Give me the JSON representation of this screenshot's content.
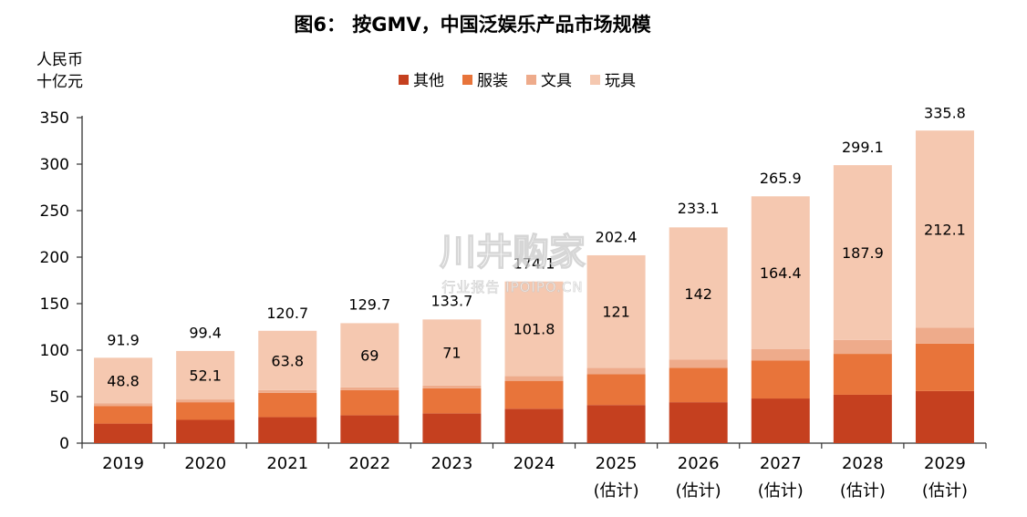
{
  "title": "图6： 按GMV，中国泛娱乐产品市场规模",
  "y_unit_line1": "人民币",
  "y_unit_line2": "十亿元",
  "watermark": {
    "main": "川井购家",
    "sub": "行业报告 IPOIPO.CN"
  },
  "colors": {
    "其他": "#c5401f",
    "服装": "#e8743a",
    "文具": "#eeab8b",
    "玩具": "#f5c8b0"
  },
  "chart_data": {
    "type": "bar",
    "stacked": true,
    "categories": [
      [
        "2019"
      ],
      [
        "2020"
      ],
      [
        "2021"
      ],
      [
        "2022"
      ],
      [
        "2023"
      ],
      [
        "2024"
      ],
      [
        "2025",
        "(估计)"
      ],
      [
        "2026",
        "(估计)"
      ],
      [
        "2027",
        "(估计)"
      ],
      [
        "2028",
        "(估计)"
      ],
      [
        "2029",
        "(估计)"
      ]
    ],
    "series": [
      {
        "name": "其他",
        "values": [
          21,
          25,
          28,
          30,
          32,
          37,
          41,
          44,
          48,
          52,
          56
        ]
      },
      {
        "name": "服装",
        "values": [
          19,
          19,
          26,
          27,
          27,
          30,
          33,
          37,
          41,
          44,
          51
        ]
      },
      {
        "name": "文具",
        "values": [
          3,
          3,
          3,
          3,
          3,
          5,
          7,
          9,
          12,
          15,
          17
        ]
      },
      {
        "name": "玩具",
        "values": [
          48.8,
          52.1,
          63.8,
          69,
          71,
          101.8,
          121,
          142,
          164.4,
          187.9,
          212.1
        ]
      }
    ],
    "toy_labels": [
      "48.8",
      "52.1",
      "63.8",
      "69",
      "71",
      "101.8",
      "121",
      "142",
      "164.4",
      "187.9",
      "212.1"
    ],
    "totals": [
      "91.9",
      "99.4",
      "120.7",
      "129.7",
      "133.7",
      "174.1",
      "202.4",
      "233.1",
      "265.9",
      "299.1",
      "335.8"
    ],
    "total_values": [
      91.9,
      99.4,
      120.7,
      129.7,
      133.7,
      174.1,
      202.4,
      233.1,
      265.9,
      299.1,
      335.8
    ],
    "ylim": [
      0,
      350
    ],
    "yticks": [
      0,
      50,
      100,
      150,
      200,
      250,
      300,
      350
    ],
    "legend_position": "top-center",
    "grid": false
  }
}
